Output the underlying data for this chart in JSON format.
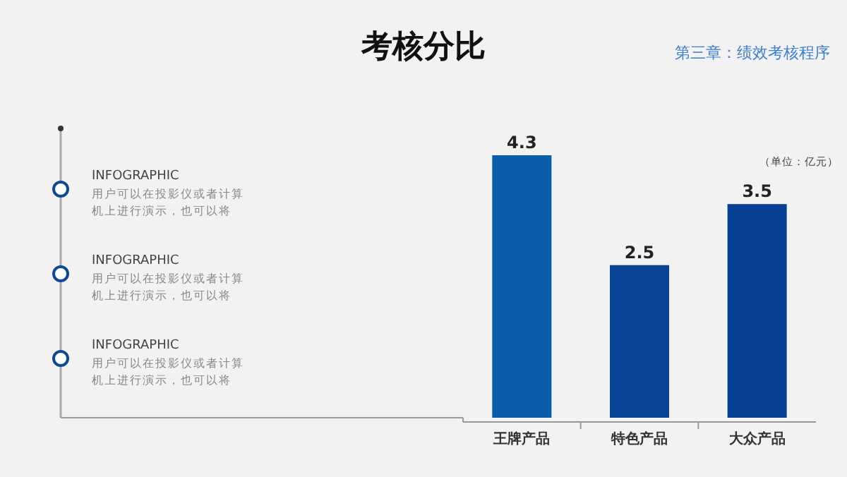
{
  "chart_data": {
    "type": "bar",
    "title": "考核分比",
    "subtitle": "第三章：绩效考核程序",
    "categories": [
      "王牌产品",
      "特色产品",
      "大众产品"
    ],
    "values": [
      4.3,
      2.5,
      3.5
    ],
    "colors": [
      "#0b5cad",
      "#0a4496",
      "#073f94"
    ],
    "data_labels": true,
    "annotations": [
      "（单位：亿元）",
      "INFOGRAPHIC",
      "用户可以在投影仪或者计算机上进行演示，也可以将",
      "INFOGRAPHIC",
      "用户可以在投影仪或者计算机上进行演示，也可以将",
      "INFOGRAPHIC",
      "用户可以在投影仪或者计算机上进行演示，也可以将"
    ]
  }
}
